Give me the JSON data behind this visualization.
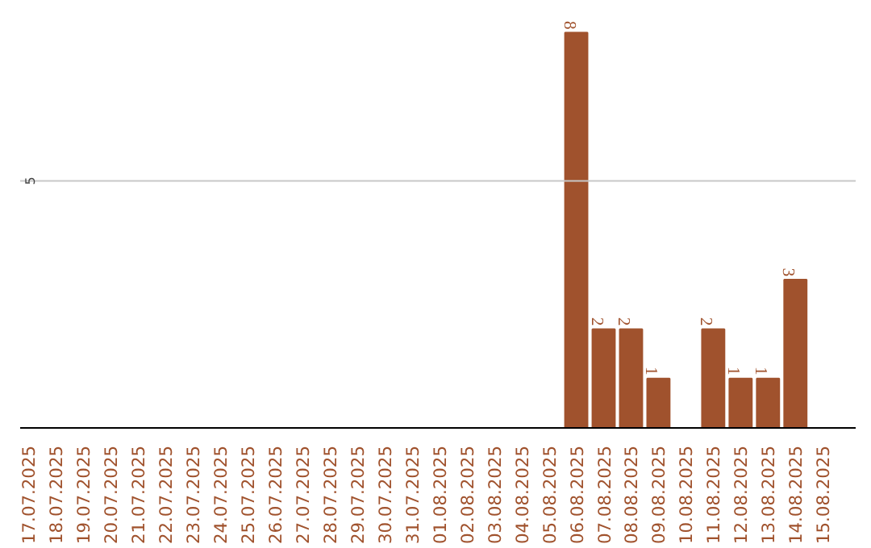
{
  "chart_data": {
    "type": "bar",
    "categories": [
      "17.07.2025",
      "18.07.2025",
      "19.07.2025",
      "20.07.2025",
      "21.07.2025",
      "22.07.2025",
      "23.07.2025",
      "24.07.2025",
      "25.07.2025",
      "26.07.2025",
      "27.07.2025",
      "28.07.2025",
      "29.07.2025",
      "30.07.2025",
      "31.07.2025",
      "01.08.2025",
      "02.08.2025",
      "03.08.2025",
      "04.08.2025",
      "05.08.2025",
      "06.08.2025",
      "07.08.2025",
      "08.08.2025",
      "09.08.2025",
      "10.08.2025",
      "11.08.2025",
      "12.08.2025",
      "13.08.2025",
      "14.08.2025",
      "15.08.2025"
    ],
    "values": [
      null,
      null,
      null,
      null,
      null,
      null,
      null,
      null,
      null,
      null,
      null,
      null,
      null,
      null,
      null,
      null,
      null,
      null,
      null,
      null,
      8,
      2,
      2,
      1,
      null,
      2,
      1,
      1,
      3,
      null
    ],
    "data_labels": true,
    "color": "#a0522d",
    "ref_lines": [
      {
        "axis": "y",
        "value": 5,
        "label": "5",
        "color": "#c8c8c8"
      }
    ]
  }
}
